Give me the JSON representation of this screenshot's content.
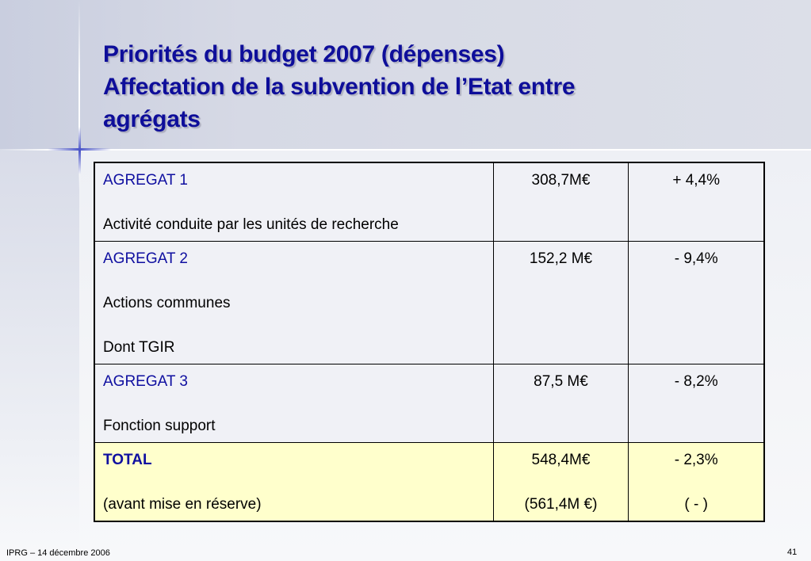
{
  "slide": {
    "title_lines": [
      "Priorités du budget 2007 (dépenses)",
      "Affectation de la subvention de l’Etat entre",
      "agrégats"
    ],
    "footer": "IPRG – 14 décembre 2006",
    "page_number": "41",
    "colors": {
      "title": "#0e0e9a",
      "agregat_label": "#0f0fa0",
      "total_row_bg": "#ffffcc",
      "row_bg": "#f0f1f6"
    }
  },
  "table": {
    "rows": [
      {
        "label": "AGREGAT 1",
        "desc": "Activité conduite par les unités de recherche",
        "amount": "308,7M€",
        "change": "+ 4,4%"
      },
      {
        "label": "AGREGAT 2",
        "desc": "Actions communes",
        "sub": "Dont TGIR",
        "amount": "152,2 M€",
        "change": "- 9,4%"
      },
      {
        "label": "AGREGAT 3",
        "desc": "Fonction support",
        "amount": "87,5 M€",
        "change": "- 8,2%"
      }
    ],
    "total": {
      "label": "TOTAL",
      "desc": "(avant mise en réserve)",
      "amount": "548,4M€",
      "amount_sub": "(561,4M €)",
      "change": "- 2,3%",
      "change_sub": "( - )"
    }
  }
}
